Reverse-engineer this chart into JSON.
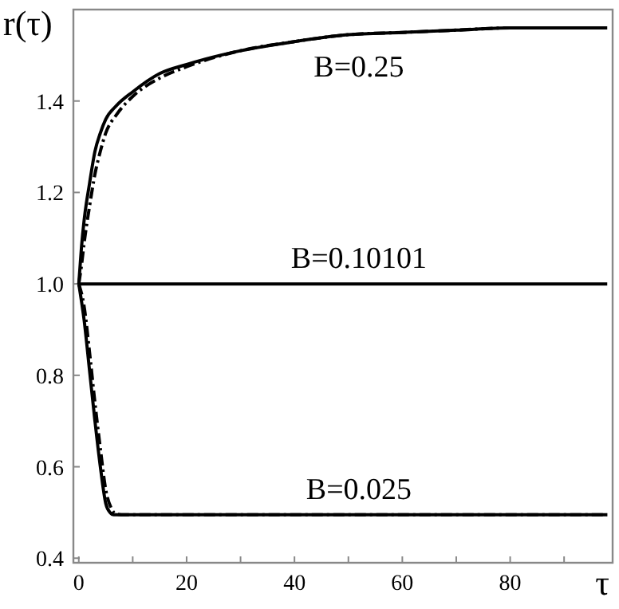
{
  "chart_data": {
    "type": "line",
    "ylabel": "r(τ)",
    "xlabel": "τ",
    "xlim": [
      -1,
      99
    ],
    "ylim": [
      0.39,
      1.6
    ],
    "xticks": [
      0,
      {
        "value": 10,
        "label": null
      },
      20,
      {
        "value": 30,
        "label": null
      },
      40,
      {
        "value": 50,
        "label": null
      },
      60,
      {
        "value": 70,
        "label": null
      },
      80,
      {
        "value": 90,
        "label": null
      }
    ],
    "yticks": [
      {
        "value": 0.4,
        "label": "0.4"
      },
      {
        "value": 0.6,
        "label": "0.6"
      },
      {
        "value": 0.8,
        "label": "0.8"
      },
      {
        "value": 1,
        "label": "1.0"
      },
      {
        "value": 1.2,
        "label": "1.2"
      },
      {
        "value": 1.4,
        "label": "1.4"
      }
    ],
    "grid": false,
    "series": [
      {
        "name": "B=0.25",
        "color": "#000000",
        "line_style": "solid",
        "x": [
          0,
          0.5,
          1,
          2,
          3,
          4,
          5,
          7,
          10,
          15,
          20,
          30,
          40,
          50,
          60,
          70,
          80,
          90,
          98
        ],
        "values": [
          1.0,
          1.08,
          1.14,
          1.22,
          1.29,
          1.33,
          1.36,
          1.39,
          1.42,
          1.46,
          1.48,
          1.51,
          1.53,
          1.545,
          1.55,
          1.555,
          1.56,
          1.56,
          1.56
        ]
      },
      {
        "color": "#000000",
        "line_style": "dashdot",
        "x": [
          0,
          0.5,
          1,
          2,
          3,
          4,
          5,
          7,
          10,
          15,
          20,
          30,
          40,
          50,
          60,
          70,
          80,
          90,
          98
        ],
        "values": [
          1.0,
          1.04,
          1.09,
          1.17,
          1.24,
          1.29,
          1.33,
          1.37,
          1.41,
          1.45,
          1.475,
          1.51,
          1.53,
          1.545,
          1.55,
          1.555,
          1.56,
          1.56,
          1.56
        ]
      },
      {
        "name": "B=0.10101",
        "color": "#000000",
        "line_style": "solid",
        "x": [
          0,
          98
        ],
        "values": [
          1.0,
          1.0
        ]
      },
      {
        "name": "B=0.025",
        "color": "#000000",
        "line_style": "solid",
        "x": [
          0,
          1,
          2,
          3,
          4,
          5,
          5.8,
          6.5,
          8,
          20,
          40,
          60,
          80,
          98
        ],
        "values": [
          1.0,
          0.92,
          0.81,
          0.7,
          0.6,
          0.52,
          0.5,
          0.495,
          0.495,
          0.495,
          0.495,
          0.495,
          0.495,
          0.495
        ]
      },
      {
        "color": "#000000",
        "line_style": "dashdot",
        "x": [
          0,
          1,
          2,
          3,
          4,
          5,
          6,
          6.8,
          8.5,
          20,
          40,
          60,
          80,
          98
        ],
        "values": [
          1.0,
          0.95,
          0.85,
          0.74,
          0.64,
          0.55,
          0.51,
          0.497,
          0.495,
          0.495,
          0.495,
          0.495,
          0.495,
          0.495
        ]
      }
    ]
  }
}
